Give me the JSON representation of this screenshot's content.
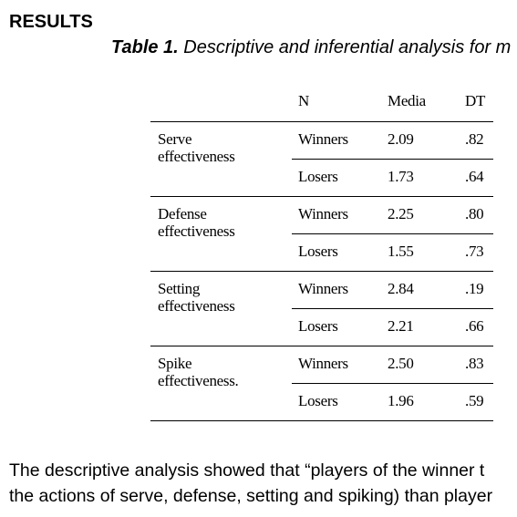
{
  "heading": "RESULTS",
  "caption": {
    "label": "Table 1.",
    "text": "Descriptive and inferential analysis for m"
  },
  "table": {
    "columns": [
      "N",
      "Media",
      "DT"
    ],
    "groups": [
      {
        "label": "Serve effectiveness",
        "rows": [
          [
            "Winners",
            "2.09",
            ".82"
          ],
          [
            "Losers",
            "1.73",
            ".64"
          ]
        ]
      },
      {
        "label": "Defense effectiveness",
        "rows": [
          [
            "Winners",
            "2.25",
            ".80"
          ],
          [
            "Losers",
            "1.55",
            ".73"
          ]
        ]
      },
      {
        "label": "Setting effectiveness",
        "rows": [
          [
            "Winners",
            "2.84",
            ".19"
          ],
          [
            "Losers",
            "2.21",
            ".66"
          ]
        ]
      },
      {
        "label": "Spike effectiveness.",
        "rows": [
          [
            "Winners",
            "2.50",
            ".83"
          ],
          [
            "Losers",
            "1.96",
            ".59"
          ]
        ]
      }
    ]
  },
  "paragraph": [
    "The descriptive analysis showed that “players of the winner t",
    "the actions of serve, defense, setting and spiking) than player"
  ]
}
